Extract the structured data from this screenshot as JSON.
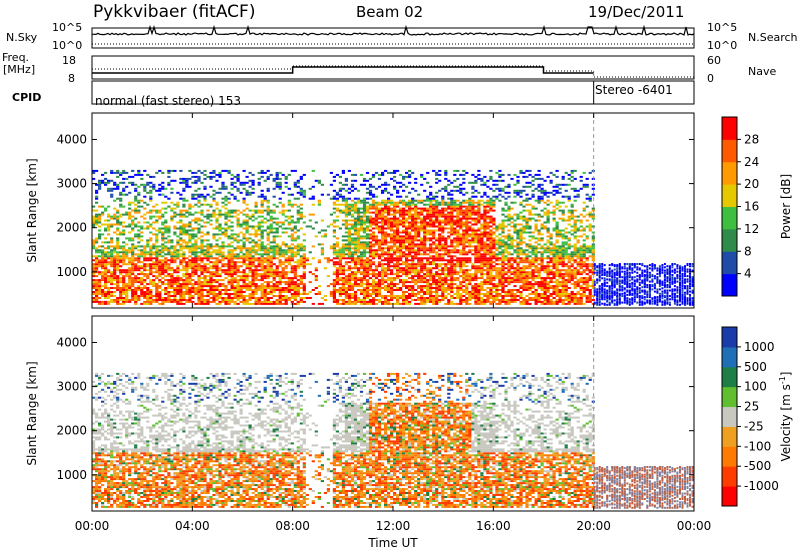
{
  "header": {
    "radar": "Pykkvibaer (fitACF)",
    "beam": "Beam 02",
    "date": "19/Dec/2011"
  },
  "strips": {
    "nsky_label": "N.Sky",
    "nsky_ticks": [
      "10^5",
      "10^0"
    ],
    "nsearch_label": "N.Search",
    "freq_label": "Freq.",
    "freq_unit": "[MHz]",
    "freq_ticks": [
      "18",
      "8"
    ],
    "nave_label": "Nave",
    "nave_ticks": [
      "60",
      "0"
    ],
    "cpid_label": "CPID",
    "cpid_modes": [
      "normal (fast stereo) 153",
      "Stereo -6401"
    ]
  },
  "colors": {
    "power": [
      "#0000ff",
      "#1e4ca8",
      "#2f8b4a",
      "#3fbf3f",
      "#e6c800",
      "#ff9a00",
      "#ff5a00",
      "#ff0000"
    ],
    "velocity": [
      "#1a3ca8",
      "#1f6fb8",
      "#1e7f46",
      "#5fbf2f",
      "#c8c8c0",
      "#f0a020",
      "#ff7a00",
      "#ff3c00",
      "#ff0000"
    ]
  },
  "chart_data": [
    {
      "type": "heatmap",
      "panel": "power",
      "ylabel": "Slant Range [km]",
      "xlabel": "Time UT",
      "xticks": [
        "00:00",
        "04:00",
        "08:00",
        "12:00",
        "16:00",
        "20:00",
        "00:00"
      ],
      "yticks": [
        "1000",
        "2000",
        "3000",
        "4000"
      ],
      "xlim_hours": [
        0,
        24
      ],
      "ylim_km": [
        180,
        4600
      ],
      "colorbar_label": "Power [dB]",
      "colorbar_ticks": [
        "4",
        "8",
        "12",
        "16",
        "20",
        "24",
        "28"
      ],
      "scale_range": [
        0,
        30
      ]
    },
    {
      "type": "heatmap",
      "panel": "velocity",
      "ylabel": "Slant Range [km]",
      "xlabel": "Time UT",
      "xticks": [
        "00:00",
        "04:00",
        "08:00",
        "12:00",
        "16:00",
        "20:00",
        "00:00"
      ],
      "yticks": [
        "1000",
        "2000",
        "3000",
        "4000"
      ],
      "xlim_hours": [
        0,
        24
      ],
      "ylim_km": [
        180,
        4600
      ],
      "colorbar_label": "Velocity [m s",
      "colorbar_label_sup": "-1",
      "colorbar_label_end": "]",
      "colorbar_ticks": [
        "1000",
        "500",
        "100",
        "25",
        "-25",
        "-100",
        "-500",
        "-1000"
      ]
    }
  ]
}
